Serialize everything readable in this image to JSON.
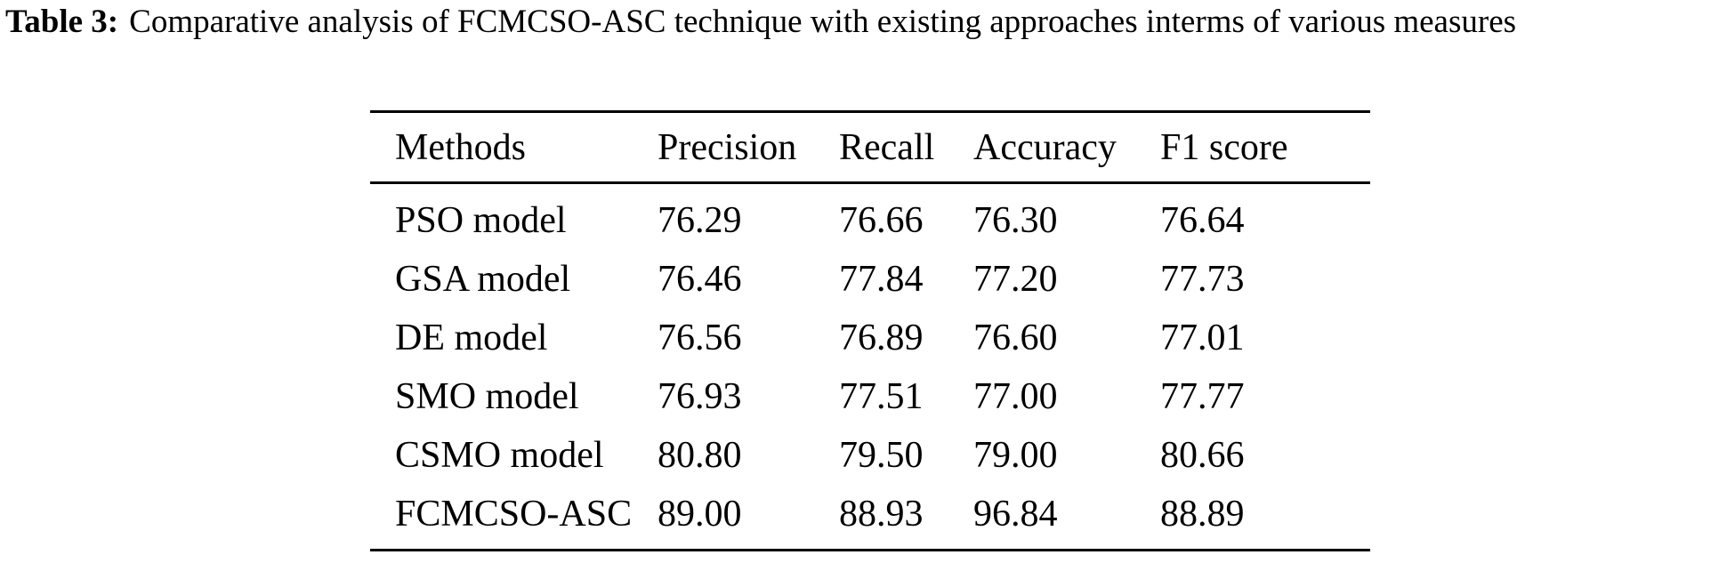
{
  "caption": {
    "label": "Table 3:",
    "text": "Comparative analysis of FCMCSO-ASC technique with existing approaches interms of various measures"
  },
  "table": {
    "headers": [
      "Methods",
      "Precision",
      "Recall",
      "Accuracy",
      "F1 score"
    ],
    "rows": [
      [
        "PSO model",
        "76.29",
        "76.66",
        "76.30",
        "76.64"
      ],
      [
        "GSA model",
        "76.46",
        "77.84",
        "77.20",
        "77.73"
      ],
      [
        "DE model",
        "76.56",
        "76.89",
        "76.60",
        "77.01"
      ],
      [
        "SMO model",
        "76.93",
        "77.51",
        "77.00",
        "77.77"
      ],
      [
        "CSMO model",
        "80.80",
        "79.50",
        "79.00",
        "80.66"
      ],
      [
        "FCMCSO-ASC",
        "89.00",
        "88.93",
        "96.84",
        "88.89"
      ]
    ]
  }
}
